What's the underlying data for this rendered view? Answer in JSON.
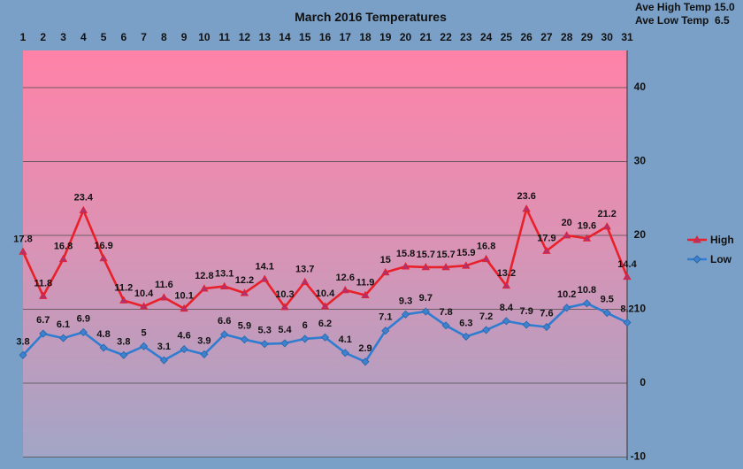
{
  "chart_data": {
    "type": "line",
    "title": "March 2016 Temperatures",
    "x": [
      1,
      2,
      3,
      4,
      5,
      6,
      7,
      8,
      9,
      10,
      11,
      12,
      13,
      14,
      15,
      16,
      17,
      18,
      19,
      20,
      21,
      22,
      23,
      24,
      25,
      26,
      27,
      28,
      29,
      30,
      31
    ],
    "x_tick_labels": [
      "1",
      "2",
      "3",
      "4",
      "5",
      "6",
      "7",
      "8",
      "9",
      "10",
      "11",
      "12",
      "13",
      "14",
      "15",
      "16",
      "17",
      "18",
      "19",
      "20",
      "21",
      "22",
      "23",
      "24",
      "25",
      "26",
      "27",
      "28",
      "29",
      "30",
      "31"
    ],
    "y_tick_labels": [
      "40",
      "30",
      "20",
      "10",
      "0",
      "-10"
    ],
    "ylim": [
      -10,
      45
    ],
    "grid": true,
    "legend_position": "right",
    "series": [
      {
        "name": "High",
        "color": "#e8202a",
        "marker": "triangle",
        "values": [
          17.8,
          11.8,
          16.8,
          23.4,
          16.9,
          11.2,
          10.4,
          11.6,
          10.1,
          12.8,
          13.1,
          12.2,
          14.1,
          10.3,
          13.7,
          10.4,
          12.6,
          11.9,
          15,
          15.8,
          15.7,
          15.7,
          15.9,
          16.8,
          13.2,
          23.6,
          17.9,
          20,
          19.6,
          21.2,
          14.4
        ],
        "labels": [
          "17.8",
          "11.8",
          "16.8",
          "23.4",
          "16.9",
          "11.2",
          "10.4",
          "11.6",
          "10.1",
          "12.8",
          "13.1",
          "12.2",
          "14.1",
          "10.3",
          "13.7",
          "10.4",
          "12.6",
          "11.9",
          "15",
          "15.8",
          "15.7",
          "15.7",
          "15.9",
          "16.8",
          "13.2",
          "23.6",
          "17.9",
          "20",
          "19.6",
          "21.2",
          "14.4"
        ]
      },
      {
        "name": "Low",
        "color": "#2f7dd1",
        "marker": "diamond",
        "values": [
          3.8,
          6.7,
          6.1,
          6.9,
          4.8,
          3.8,
          5,
          3.1,
          4.6,
          3.9,
          6.6,
          5.9,
          5.3,
          5.4,
          6,
          6.2,
          4.1,
          2.9,
          7.1,
          9.3,
          9.7,
          7.8,
          6.3,
          7.2,
          8.4,
          7.9,
          7.6,
          10.2,
          10.8,
          9.5,
          8.2
        ],
        "labels": [
          "3.8",
          "6.7",
          "6.1",
          "6.9",
          "4.8",
          "3.8",
          "5",
          "3.1",
          "4.6",
          "3.9",
          "6.6",
          "5.9",
          "5.3",
          "5.4",
          "6",
          "6.2",
          "4.1",
          "2.9",
          "7.1",
          "9.3",
          "9.7",
          "7.8",
          "6.3",
          "7.2",
          "8.4",
          "7.9",
          "7.6",
          "10.2",
          "10.8",
          "9.5",
          "8.2"
        ]
      }
    ],
    "annotations": [
      "Ave High Temp 15.0",
      "Ave Low Temp  6.5"
    ]
  }
}
